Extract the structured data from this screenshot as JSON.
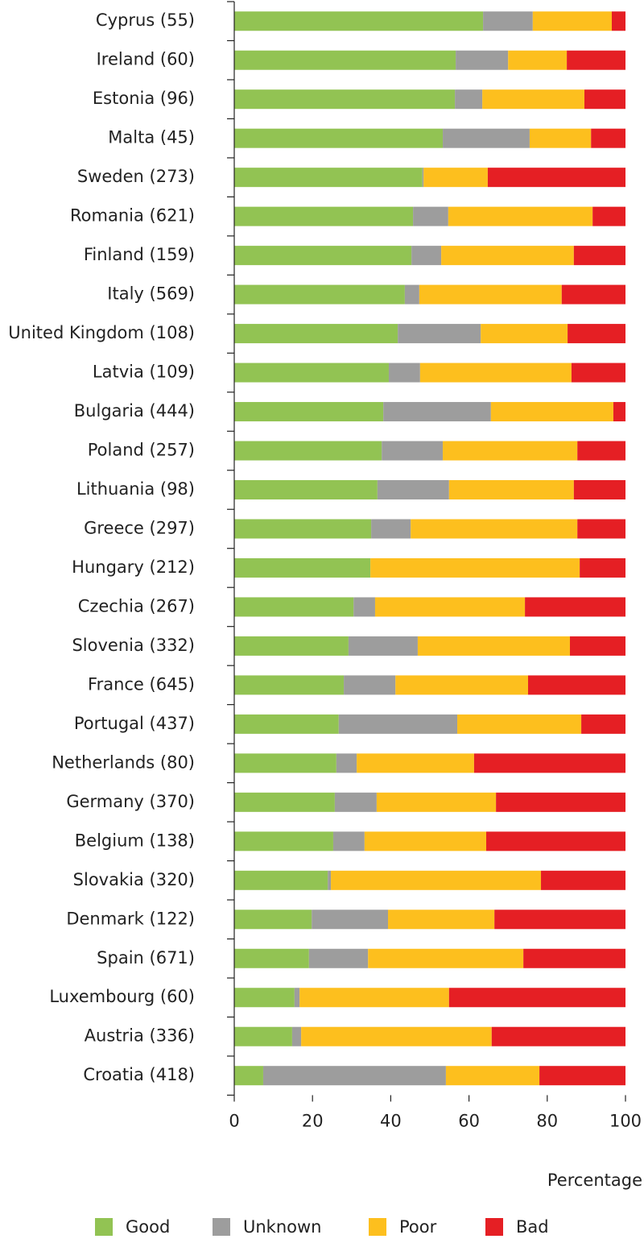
{
  "chart_data": {
    "type": "stacked-barh",
    "x_label": "Percentage",
    "categories": [
      "Cyprus (55)",
      "Ireland (60)",
      "Estonia (96)",
      "Malta (45)",
      "Sweden (273)",
      "Romania (621)",
      "Finland (159)",
      "Italy (569)",
      "United Kingdom (108)",
      "Latvia (109)",
      "Bulgaria (444)",
      "Poland (257)",
      "Lithuania (98)",
      "Greece (297)",
      "Hungary (212)",
      "Czechia (267)",
      "Slovenia (332)",
      "France (645)",
      "Portugal (437)",
      "Netherlands (80)",
      "Germany (370)",
      "Belgium (138)",
      "Slovakia (320)",
      "Denmark (122)",
      "Spain (671)",
      "Luxembourg (60)",
      "Austria (336)",
      "Croatia (418)"
    ],
    "series": [
      {
        "name": "Good",
        "color": "#92c353",
        "values": [
          63.6,
          56.6,
          56.4,
          53.3,
          48.1,
          45.7,
          45.3,
          43.6,
          41.8,
          39.5,
          38.1,
          37.7,
          36.6,
          35.0,
          34.8,
          30.5,
          29.2,
          28.0,
          26.7,
          26.1,
          25.7,
          25.3,
          23.9,
          19.8,
          19.1,
          15.4,
          14.8,
          7.4
        ]
      },
      {
        "name": "Unknown",
        "color": "#9d9d9d",
        "values": [
          12.7,
          13.4,
          7.0,
          22.2,
          0.3,
          9.0,
          7.6,
          3.7,
          21.2,
          8.0,
          27.5,
          15.6,
          18.3,
          10.1,
          0,
          5.5,
          17.7,
          13.2,
          30.3,
          5.2,
          10.7,
          8.0,
          0.8,
          19.5,
          15.1,
          1.3,
          2.3,
          46.7
        ]
      },
      {
        "name": "Poor",
        "color": "#fdbf1e",
        "values": [
          20.2,
          15.0,
          26.1,
          15.7,
          16.4,
          36.9,
          33.9,
          36.4,
          22.2,
          38.7,
          31.3,
          34.4,
          31.9,
          42.6,
          53.5,
          38.3,
          38.9,
          33.9,
          31.7,
          30.0,
          30.5,
          31.1,
          53.7,
          27.2,
          39.7,
          38.2,
          48.7,
          23.9
        ]
      },
      {
        "name": "Bad",
        "color": "#e51f24",
        "values": [
          3.5,
          15.0,
          10.5,
          8.8,
          35.2,
          8.4,
          13.2,
          16.3,
          14.8,
          13.8,
          3.1,
          12.3,
          13.2,
          12.3,
          11.7,
          25.7,
          14.2,
          24.9,
          11.3,
          38.7,
          33.1,
          35.6,
          21.6,
          33.5,
          26.1,
          45.1,
          34.2,
          22.0
        ]
      }
    ],
    "xlim": [
      0,
      100
    ],
    "xticks": [
      0,
      20,
      40,
      60,
      80,
      100
    ]
  }
}
